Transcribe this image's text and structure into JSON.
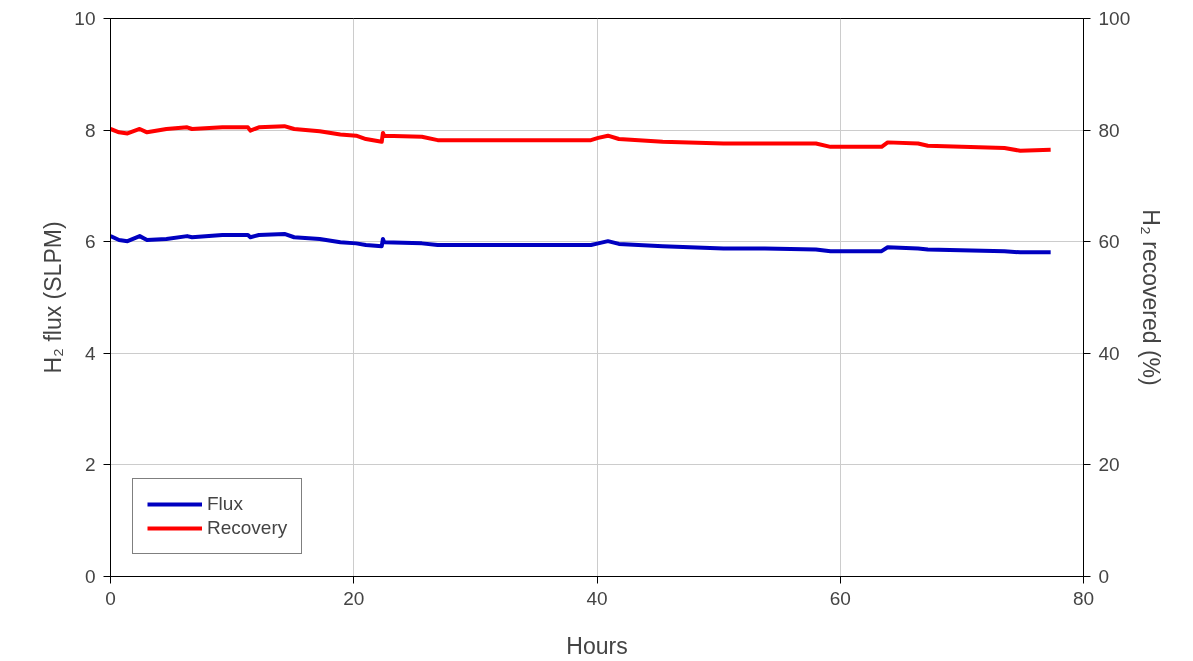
{
  "chart_data": {
    "type": "line",
    "xlabel": "Hours",
    "ylabel": "H₂ flux (SLPM)",
    "y2label": "H₂ recovered (%)",
    "x": [
      0,
      0.7,
      1.4,
      2.4,
      3,
      4.6,
      6.3,
      6.7,
      9.2,
      11.3,
      11.5,
      12.2,
      14.3,
      15.1,
      17.2,
      18.9,
      20.2,
      21,
      22.3,
      22.4,
      22.5,
      25.6,
      26.9,
      31.9,
      39.5,
      40.1,
      40.9,
      41.8,
      45.4,
      50.4,
      53.8,
      58,
      59.2,
      63.4,
      63.9,
      66.4,
      67.2,
      73.5,
      74.8,
      77.3
    ],
    "series": [
      {
        "name": "Flux",
        "color": "#0000c0",
        "values": [
          6.1,
          6.03,
          6.01,
          6.1,
          6.03,
          6.05,
          6.1,
          6.08,
          6.12,
          6.12,
          6.08,
          6.12,
          6.14,
          6.08,
          6.05,
          5.99,
          5.97,
          5.94,
          5.92,
          6.05,
          5.99,
          5.97,
          5.94,
          5.94,
          5.94,
          5.97,
          6.01,
          5.96,
          5.92,
          5.88,
          5.88,
          5.86,
          5.83,
          5.83,
          5.9,
          5.88,
          5.86,
          5.83,
          5.81,
          5.81
        ]
      },
      {
        "name": "Recovery",
        "color": "#ff0000",
        "axis": "y2",
        "values": [
          80.2,
          79.6,
          79.4,
          80.2,
          79.6,
          80.2,
          80.5,
          80.2,
          80.5,
          80.5,
          79.9,
          80.5,
          80.7,
          80.2,
          79.8,
          79.2,
          79.0,
          78.4,
          77.9,
          79.5,
          79.0,
          78.8,
          78.2,
          78.2,
          78.2,
          78.6,
          79.0,
          78.4,
          77.9,
          77.6,
          77.6,
          77.6,
          77.0,
          77.0,
          77.8,
          77.6,
          77.2,
          76.8,
          76.3,
          76.5
        ]
      }
    ],
    "xlim": [
      0,
      80
    ],
    "xticks": [
      0,
      20,
      40,
      60,
      80
    ],
    "ylim": [
      0,
      10
    ],
    "yticks": [
      0,
      2,
      4,
      6,
      8,
      10
    ],
    "y2lim": [
      0,
      100
    ],
    "y2ticks": [
      0,
      20,
      40,
      60,
      80,
      100
    ],
    "grid": true,
    "legend": "bottom left",
    "marker": "none",
    "line_style": "solid"
  }
}
